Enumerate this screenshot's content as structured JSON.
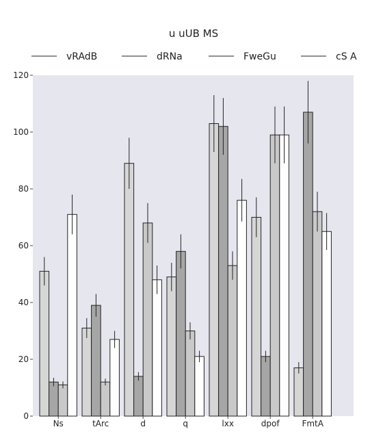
{
  "chart_data": {
    "type": "bar",
    "title": "u uUB MS",
    "xlabel": "",
    "ylabel": "",
    "ylim": [
      0,
      120
    ],
    "yticks": [
      0,
      20,
      40,
      60,
      80,
      100,
      120
    ],
    "grid": false,
    "legend_position": "top",
    "categories": [
      "Ns",
      "tArc",
      "d",
      "q",
      "lxx",
      "dpof",
      "FmtA"
    ],
    "series": [
      {
        "name": "vRAdB",
        "color": "#d6d6d6",
        "values": [
          51,
          31,
          89,
          49,
          103,
          70,
          17
        ],
        "errors": [
          5,
          3.5,
          9,
          5,
          10,
          7,
          2
        ]
      },
      {
        "name": "dRNa",
        "color": "#a6a6a6",
        "values": [
          12,
          39,
          14,
          58,
          102,
          21,
          107
        ],
        "errors": [
          1.5,
          4,
          1.5,
          6,
          10,
          2,
          11
        ]
      },
      {
        "name": "FweGu",
        "color": "#c9c9c9",
        "values": [
          11,
          12,
          68,
          30,
          53,
          99,
          72
        ],
        "errors": [
          1.2,
          1.2,
          7,
          3,
          5,
          10,
          7
        ]
      },
      {
        "name": "cS A",
        "color": "#ffffff",
        "values": [
          71,
          27,
          48,
          21,
          76,
          99,
          65
        ],
        "errors": [
          7,
          3,
          5,
          2,
          7.5,
          10,
          6.5
        ]
      }
    ]
  }
}
